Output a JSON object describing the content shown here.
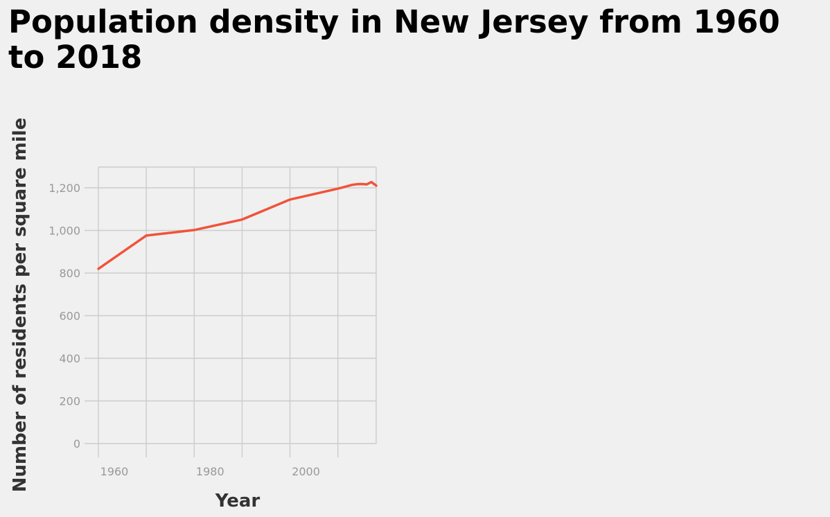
{
  "chart_data": {
    "type": "line",
    "title": "Population density in New Jersey from 1960 to 2018",
    "xlabel": "Year",
    "ylabel": "Number of residents per square mile",
    "x_ticks": [
      1960,
      1980,
      2000
    ],
    "x_tick_labels": [
      "1960",
      "1980",
      "2000"
    ],
    "y_ticks": [
      0,
      200,
      400,
      600,
      800,
      1000,
      1200
    ],
    "y_tick_labels": [
      "0",
      "200",
      "400",
      "600",
      "800",
      "1,000",
      "1,200"
    ],
    "xlim": [
      1960,
      2018
    ],
    "ylim": [
      0,
      1300
    ],
    "grid": true,
    "series": [
      {
        "color": "#f0533a",
        "x": [
          1960,
          1970,
          1980,
          1990,
          2000,
          2010,
          2011,
          2012,
          2013,
          2014,
          2015,
          2016,
          2017,
          2018
        ],
        "y": [
          820,
          976,
          1002,
          1051,
          1145,
          1196,
          1202,
          1208,
          1214,
          1217,
          1218,
          1216,
          1227,
          1210
        ]
      }
    ]
  }
}
